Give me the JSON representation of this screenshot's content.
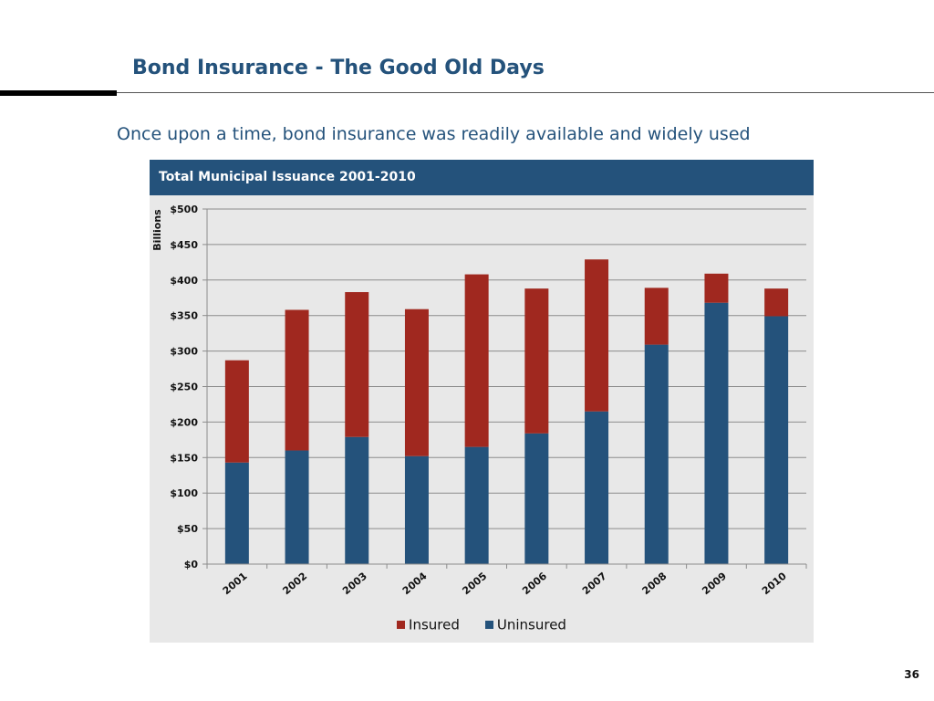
{
  "slide": {
    "title": "Bond Insurance - The Good Old Days",
    "subtitle": "Once upon a time, bond insurance was readily available and widely used",
    "page_number": "36"
  },
  "colors": {
    "brand_blue": "#24527b",
    "insured": "#a0281f",
    "uninsured": "#24527b",
    "panel_background": "#e8e8e8"
  },
  "chart_data": {
    "type": "bar",
    "stacked": true,
    "title": "Total Municipal Issuance 2001-2010",
    "ylabel": "Billions",
    "xlabel": "",
    "categories": [
      "2001",
      "2002",
      "2003",
      "2004",
      "2005",
      "2006",
      "2007",
      "2008",
      "2009",
      "2010"
    ],
    "series": [
      {
        "name": "Uninsured",
        "color": "#24527b",
        "values": [
          143,
          160,
          179,
          152,
          165,
          184,
          215,
          309,
          368,
          349
        ]
      },
      {
        "name": "Insured",
        "color": "#a0281f",
        "values": [
          144,
          198,
          204,
          207,
          243,
          204,
          214,
          80,
          41,
          39
        ]
      }
    ],
    "ylim": [
      0,
      500
    ],
    "yticks": [
      0,
      50,
      100,
      150,
      200,
      250,
      300,
      350,
      400,
      450,
      500
    ],
    "ytick_labels": [
      "$0",
      "$50",
      "$100",
      "$150",
      "$200",
      "$250",
      "$300",
      "$350",
      "$400",
      "$450",
      "$500"
    ],
    "legend": [
      {
        "name": "Insured",
        "color": "#a0281f"
      },
      {
        "name": "Uninsured",
        "color": "#24527b"
      }
    ],
    "legend_position": "bottom",
    "grid": true
  }
}
